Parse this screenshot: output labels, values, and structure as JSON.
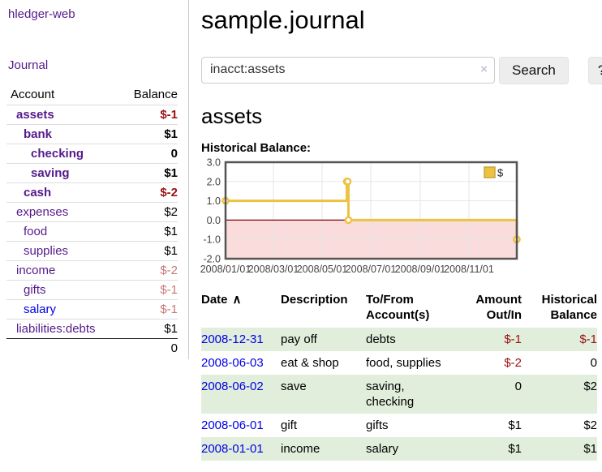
{
  "app": {
    "brand": "hledger-web"
  },
  "sidebar": {
    "nav_journal": "Journal",
    "accounts_table": {
      "headers": {
        "account": "Account",
        "balance": "Balance"
      },
      "rows": [
        {
          "name": "assets",
          "depth": 0,
          "balance": "$-1",
          "bold": true,
          "balance_tone": "neg-strong",
          "link_state": "visited"
        },
        {
          "name": "bank",
          "depth": 1,
          "balance": "$1",
          "bold": true,
          "balance_tone": "normal",
          "link_state": "visited"
        },
        {
          "name": "checking",
          "depth": 2,
          "balance": "0",
          "bold": true,
          "balance_tone": "normal",
          "link_state": "visited"
        },
        {
          "name": "saving",
          "depth": 2,
          "balance": "$1",
          "bold": true,
          "balance_tone": "normal",
          "link_state": "visited"
        },
        {
          "name": "cash",
          "depth": 1,
          "balance": "$-2",
          "bold": true,
          "balance_tone": "neg-strong",
          "link_state": "visited"
        },
        {
          "name": "expenses",
          "depth": 0,
          "balance": "$2",
          "bold": false,
          "balance_tone": "normal",
          "link_state": "visited"
        },
        {
          "name": "food",
          "depth": 1,
          "balance": "$1",
          "bold": false,
          "balance_tone": "normal",
          "link_state": "visited"
        },
        {
          "name": "supplies",
          "depth": 1,
          "balance": "$1",
          "bold": false,
          "balance_tone": "normal",
          "link_state": "visited"
        },
        {
          "name": "income",
          "depth": 0,
          "balance": "$-2",
          "bold": false,
          "balance_tone": "neg-light",
          "link_state": "visited"
        },
        {
          "name": "gifts",
          "depth": 1,
          "balance": "$-1",
          "bold": false,
          "balance_tone": "neg-light",
          "link_state": "visited"
        },
        {
          "name": "salary",
          "depth": 1,
          "balance": "$-1",
          "bold": false,
          "balance_tone": "neg-light",
          "link_state": "unvisited"
        },
        {
          "name": "liabilities:debts",
          "depth": 0,
          "balance": "$1",
          "bold": false,
          "balance_tone": "normal",
          "link_state": "visited"
        }
      ],
      "total": "0"
    }
  },
  "header": {
    "title": "sample.journal"
  },
  "search": {
    "value": "inacct:assets",
    "clear_icon": "×",
    "button_label": "Search",
    "help_label": "?"
  },
  "main": {
    "account_heading": "assets",
    "chart_label": "Historical Balance:"
  },
  "chart_data": {
    "type": "line",
    "title": "Historical Balance:",
    "step": true,
    "series": [
      {
        "name": "$",
        "points": [
          {
            "date": "2008-01-01",
            "value": 1
          },
          {
            "date": "2008-06-01",
            "value": 2
          },
          {
            "date": "2008-06-02",
            "value": 2
          },
          {
            "date": "2008-06-03",
            "value": 0
          },
          {
            "date": "2008-12-31",
            "value": -1
          }
        ]
      }
    ],
    "x_range": [
      "2008-01-01",
      "2008-12-31"
    ],
    "x_ticks": [
      "2008/01/01",
      "2008/03/01",
      "2008/05/01",
      "2008/07/01",
      "2008/09/01",
      "2008/11/01"
    ],
    "y_ticks": [
      "3.0",
      "2.0",
      "1.0",
      "0.0",
      "-1.0",
      "-2.0"
    ],
    "ylim": [
      -2,
      3
    ],
    "grid": true,
    "legend": {
      "label": "$",
      "position": "top-right"
    },
    "colors": {
      "line": "#edc240",
      "negative_region_fill": "#fbdcdc",
      "zero_line": "#8b0000",
      "border": "#545454",
      "gridline": "#e6e6e6",
      "tick_text": "#444444"
    }
  },
  "transactions": {
    "sort_icon": "∧",
    "headers": [
      "Date",
      "Description",
      "To/From Account(s)",
      "Amount Out/In",
      "Historical Balance"
    ],
    "rows": [
      {
        "date": "2008-12-31",
        "description": "pay off",
        "accounts": "debts",
        "amount": "$-1",
        "balance": "$-1",
        "amount_negative": true,
        "balance_negative": true,
        "green": true
      },
      {
        "date": "2008-06-03",
        "description": "eat & shop",
        "accounts": "food, supplies",
        "amount": "$-2",
        "balance": "0",
        "amount_negative": true,
        "balance_negative": false,
        "green": false
      },
      {
        "date": "2008-06-02",
        "description": "save",
        "accounts": "saving, checking",
        "amount": "0",
        "balance": "$2",
        "amount_negative": false,
        "balance_negative": false,
        "green": true
      },
      {
        "date": "2008-06-01",
        "description": "gift",
        "accounts": "gifts",
        "amount": "$1",
        "balance": "$2",
        "amount_negative": false,
        "balance_negative": false,
        "green": false
      },
      {
        "date": "2008-01-01",
        "description": "income",
        "accounts": "salary",
        "amount": "$1",
        "balance": "$1",
        "amount_negative": false,
        "balance_negative": false,
        "green": true
      }
    ]
  },
  "colors": {
    "link_purple": "#551a8b",
    "link_blue": "#0000e6",
    "negative_strong": "#9a1111",
    "negative_light": "#c87878",
    "row_green": "#e1eedb",
    "chart_line": "#edc240",
    "chart_negative_fill": "#fbdcdc",
    "chart_zero_line": "#8b0000",
    "btn_bg": "#ededed"
  }
}
